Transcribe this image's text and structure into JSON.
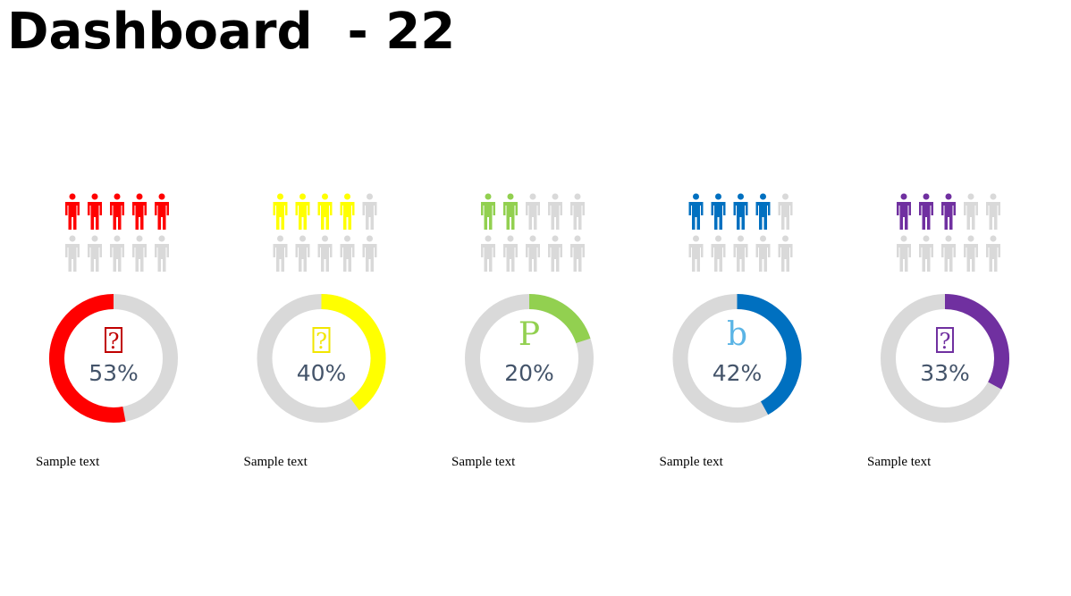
{
  "title": "Dashboard  - 22",
  "chart_data": [
    {
      "type": "donut",
      "values": [
        53
      ],
      "value_labels": [
        "53%"
      ],
      "ylim": [
        0,
        100
      ],
      "color": "#ff0000",
      "direction": "counterclockwise",
      "icon_text": "?",
      "icon_boxed": true,
      "icon_color": "#c00000",
      "caption": "Sample text",
      "people": {
        "filled": 5,
        "total": 10
      }
    },
    {
      "type": "donut",
      "values": [
        40
      ],
      "value_labels": [
        "40%"
      ],
      "ylim": [
        0,
        100
      ],
      "color": "#ffff00",
      "direction": "clockwise",
      "icon_text": "?",
      "icon_boxed": true,
      "icon_color": "#f2e600",
      "caption": "Sample text",
      "people": {
        "filled": 4,
        "total": 10
      }
    },
    {
      "type": "donut",
      "values": [
        20
      ],
      "value_labels": [
        "20%"
      ],
      "ylim": [
        0,
        100
      ],
      "color": "#92d050",
      "direction": "clockwise",
      "icon_text": "P",
      "icon_boxed": false,
      "icon_color": "#92d050",
      "caption": "Sample text",
      "people": {
        "filled": 2,
        "total": 10
      }
    },
    {
      "type": "donut",
      "values": [
        42
      ],
      "value_labels": [
        "42%"
      ],
      "ylim": [
        0,
        100
      ],
      "color": "#0070c0",
      "direction": "clockwise",
      "icon_text": "b",
      "icon_boxed": false,
      "icon_color": "#5ab4e5",
      "caption": "Sample text",
      "people": {
        "filled": 4,
        "total": 10
      }
    },
    {
      "type": "donut",
      "values": [
        33
      ],
      "value_labels": [
        "33%"
      ],
      "ylim": [
        0,
        100
      ],
      "color": "#7030a0",
      "direction": "clockwise",
      "icon_text": "?",
      "icon_boxed": true,
      "icon_color": "#7030a0",
      "caption": "Sample text",
      "people": {
        "filled": 3,
        "total": 10
      }
    }
  ]
}
